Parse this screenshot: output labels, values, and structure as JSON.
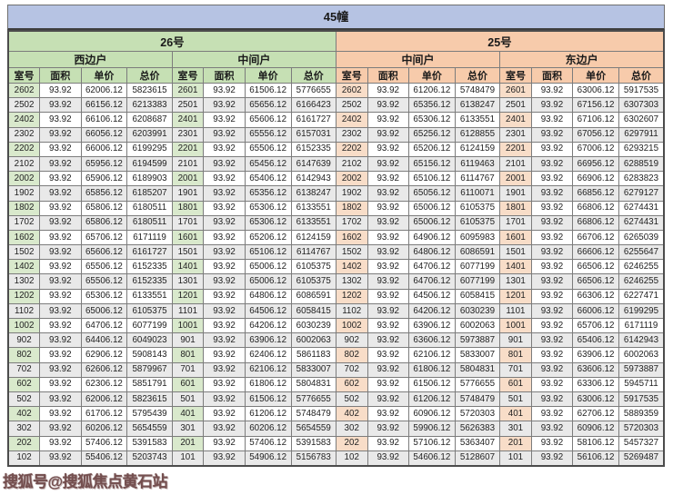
{
  "building": {
    "title": "45幢"
  },
  "watermark": {
    "text": "搜狐号@搜狐焦点黄石站"
  },
  "colors": {
    "title_band": "#b6c3e3",
    "green_header": "#c6e0b4",
    "peach_header": "#f7cbab",
    "green_room_cell": "#d9e9cc",
    "peach_room_cell": "#f8ddc8",
    "row_stripe": "#e9e9e9",
    "watermark_text": "#6a4242"
  },
  "table": {
    "sections": [
      {
        "label": "26号",
        "theme": "green",
        "units": [
          "西边户",
          "中间户"
        ]
      },
      {
        "label": "25号",
        "theme": "peach",
        "units": [
          "中间户",
          "东边户"
        ]
      }
    ],
    "column_headers": [
      "室号",
      "面积",
      "单价",
      "总价"
    ],
    "rows": [
      [
        "2602",
        "93.92",
        "62006.12",
        "5823615",
        "2601",
        "93.92",
        "61506.12",
        "5776655",
        "2602",
        "93.92",
        "61206.12",
        "5748479",
        "2601",
        "93.92",
        "63006.12",
        "5917535"
      ],
      [
        "2502",
        "93.92",
        "66156.12",
        "6213383",
        "2501",
        "93.92",
        "65656.12",
        "6166423",
        "2502",
        "93.92",
        "65356.12",
        "6138247",
        "2501",
        "93.92",
        "67156.12",
        "6307303"
      ],
      [
        "2402",
        "93.92",
        "66106.12",
        "6208687",
        "2401",
        "93.92",
        "65606.12",
        "6161727",
        "2402",
        "93.92",
        "65306.12",
        "6133551",
        "2401",
        "93.92",
        "67106.12",
        "6302607"
      ],
      [
        "2302",
        "93.92",
        "66056.12",
        "6203991",
        "2301",
        "93.92",
        "65556.12",
        "6157031",
        "2302",
        "93.92",
        "65256.12",
        "6128855",
        "2301",
        "93.92",
        "67056.12",
        "6297911"
      ],
      [
        "2202",
        "93.92",
        "66006.12",
        "6199295",
        "2201",
        "93.92",
        "65506.12",
        "6152335",
        "2202",
        "93.92",
        "65206.12",
        "6124159",
        "2201",
        "93.92",
        "67006.12",
        "6293215"
      ],
      [
        "2102",
        "93.92",
        "65956.12",
        "6194599",
        "2101",
        "93.92",
        "65456.12",
        "6147639",
        "2102",
        "93.92",
        "65156.12",
        "6119463",
        "2101",
        "93.92",
        "66956.12",
        "6288519"
      ],
      [
        "2002",
        "93.92",
        "65906.12",
        "6189903",
        "2001",
        "93.92",
        "65406.12",
        "6142943",
        "2002",
        "93.92",
        "65106.12",
        "6114767",
        "2001",
        "93.92",
        "66906.12",
        "6283823"
      ],
      [
        "1902",
        "93.92",
        "65856.12",
        "6185207",
        "1901",
        "93.92",
        "65356.12",
        "6138247",
        "1902",
        "93.92",
        "65056.12",
        "6110071",
        "1901",
        "93.92",
        "66856.12",
        "6279127"
      ],
      [
        "1802",
        "93.92",
        "65806.12",
        "6180511",
        "1801",
        "93.92",
        "65306.12",
        "6133551",
        "1802",
        "93.92",
        "65006.12",
        "6105375",
        "1801",
        "93.92",
        "66806.12",
        "6274431"
      ],
      [
        "1702",
        "93.92",
        "65806.12",
        "6180511",
        "1701",
        "93.92",
        "65306.12",
        "6133551",
        "1702",
        "93.92",
        "65006.12",
        "6105375",
        "1701",
        "93.92",
        "66806.12",
        "6274431"
      ],
      [
        "1602",
        "93.92",
        "65706.12",
        "6171119",
        "1601",
        "93.92",
        "65206.12",
        "6124159",
        "1602",
        "93.92",
        "64906.12",
        "6095983",
        "1601",
        "93.92",
        "66706.12",
        "6265039"
      ],
      [
        "1502",
        "93.92",
        "65606.12",
        "6161727",
        "1501",
        "93.92",
        "65106.12",
        "6114767",
        "1502",
        "93.92",
        "64806.12",
        "6086591",
        "1501",
        "93.92",
        "66606.12",
        "6255647"
      ],
      [
        "1402",
        "93.92",
        "65506.12",
        "6152335",
        "1401",
        "93.92",
        "65006.12",
        "6105375",
        "1402",
        "93.92",
        "64706.12",
        "6077199",
        "1401",
        "93.92",
        "66506.12",
        "6246255"
      ],
      [
        "1302",
        "93.92",
        "65506.12",
        "6152335",
        "1301",
        "93.92",
        "65006.12",
        "6105375",
        "1302",
        "93.92",
        "64706.12",
        "6077199",
        "1301",
        "93.92",
        "66506.12",
        "6246255"
      ],
      [
        "1202",
        "93.92",
        "65306.12",
        "6133551",
        "1201",
        "93.92",
        "64806.12",
        "6086591",
        "1202",
        "93.92",
        "64506.12",
        "6058415",
        "1201",
        "93.92",
        "66306.12",
        "6227471"
      ],
      [
        "1102",
        "93.92",
        "65006.12",
        "6105375",
        "1101",
        "93.92",
        "64506.12",
        "6058415",
        "1102",
        "93.92",
        "64206.12",
        "6030239",
        "1101",
        "93.92",
        "66006.12",
        "6199295"
      ],
      [
        "1002",
        "93.92",
        "64706.12",
        "6077199",
        "1001",
        "93.92",
        "64206.12",
        "6030239",
        "1002",
        "93.92",
        "63906.12",
        "6002063",
        "1001",
        "93.92",
        "65706.12",
        "6171119"
      ],
      [
        "902",
        "93.92",
        "64406.12",
        "6049023",
        "901",
        "93.92",
        "63906.12",
        "6002063",
        "902",
        "93.92",
        "63606.12",
        "5973887",
        "901",
        "93.92",
        "65406.12",
        "6142943"
      ],
      [
        "802",
        "93.92",
        "62906.12",
        "5908143",
        "801",
        "93.92",
        "62406.12",
        "5861183",
        "802",
        "93.92",
        "62106.12",
        "5833007",
        "801",
        "93.92",
        "63906.12",
        "6002063"
      ],
      [
        "702",
        "93.92",
        "62606.12",
        "5879967",
        "701",
        "93.92",
        "62106.12",
        "5833007",
        "702",
        "93.92",
        "61806.12",
        "5804831",
        "701",
        "93.92",
        "63606.12",
        "5973887"
      ],
      [
        "602",
        "93.92",
        "62306.12",
        "5851791",
        "601",
        "93.92",
        "61806.12",
        "5804831",
        "602",
        "93.92",
        "61506.12",
        "5776655",
        "601",
        "93.92",
        "63306.12",
        "5945711"
      ],
      [
        "502",
        "93.92",
        "62006.12",
        "5823615",
        "501",
        "93.92",
        "61506.12",
        "5776655",
        "502",
        "93.92",
        "61206.12",
        "5748479",
        "501",
        "93.92",
        "63006.12",
        "5917535"
      ],
      [
        "402",
        "93.92",
        "61706.12",
        "5795439",
        "401",
        "93.92",
        "61206.12",
        "5748479",
        "402",
        "93.92",
        "60906.12",
        "5720303",
        "401",
        "93.92",
        "62706.12",
        "5889359"
      ],
      [
        "302",
        "93.92",
        "60206.12",
        "5654559",
        "301",
        "93.92",
        "60206.12",
        "5654559",
        "302",
        "93.92",
        "59906.12",
        "5626383",
        "301",
        "93.92",
        "60906.12",
        "5720303"
      ],
      [
        "202",
        "93.92",
        "57406.12",
        "5391583",
        "201",
        "93.92",
        "57406.12",
        "5391583",
        "202",
        "93.92",
        "57106.12",
        "5363407",
        "201",
        "93.92",
        "58106.12",
        "5457327"
      ],
      [
        "102",
        "93.92",
        "55406.12",
        "5203743",
        "101",
        "93.92",
        "54906.12",
        "5156783",
        "102",
        "93.92",
        "54606.12",
        "5128607",
        "101",
        "93.92",
        "56106.12",
        "5269487"
      ]
    ]
  }
}
